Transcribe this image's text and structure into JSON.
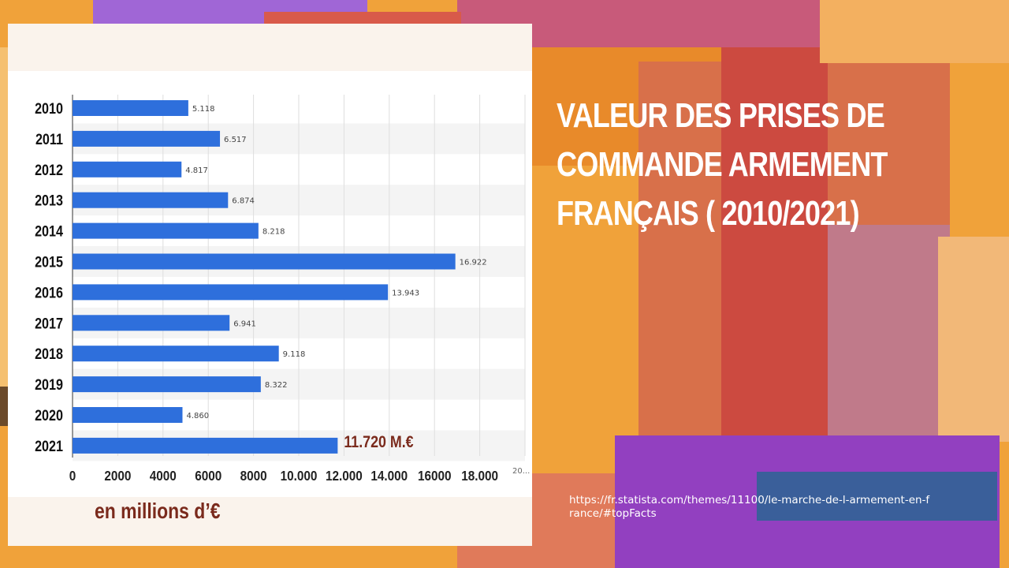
{
  "slide": {
    "title": "VALEUR DES PRISES DE\nCOMMANDE ARMEMENT\nFRANÇAIS  ( 2010/2021)",
    "unit_label": "en millions d’€",
    "source_url": "https://fr.statista.com/themes/11100/le-marche-de-l-armement-en-france/#topFacts"
  },
  "colors": {
    "bar": "#2e6fdc",
    "highlight_label": "#7a2a1c",
    "title": "#ffffff",
    "background_orange": "#f0a23a",
    "accent_purple": "#9b5de5",
    "accent_red": "#d9534f"
  },
  "chart_data": {
    "type": "bar",
    "orientation": "horizontal",
    "categories": [
      "2010",
      "2011",
      "2012",
      "2013",
      "2014",
      "2015",
      "2016",
      "2017",
      "2018",
      "2019",
      "2020",
      "2021"
    ],
    "values": [
      5118,
      6517,
      4817,
      6874,
      8218,
      16922,
      13943,
      6941,
      9118,
      8322,
      4860,
      11720
    ],
    "value_labels": [
      "5.118",
      "6.517",
      "4.817",
      "6.874",
      "8.218",
      "16.922",
      "13.943",
      "6.941",
      "9.118",
      "8.322",
      "4.860",
      "11.720 M.€"
    ],
    "x_ticks": [
      "0",
      "2000",
      "4000",
      "6000",
      "8000",
      "10.000",
      "12.000",
      "14.000",
      "16000",
      "18.000",
      "20..."
    ],
    "xlim": [
      0,
      20000
    ],
    "grid": true
  }
}
